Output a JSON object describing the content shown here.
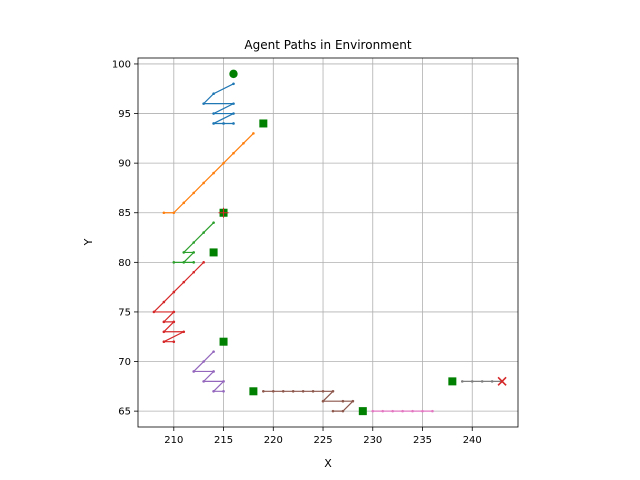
{
  "chart_data": {
    "type": "line",
    "title": "Agent Paths in Environment",
    "xlabel": "X",
    "ylabel": "Y",
    "xlim": [
      206.4,
      244.6
    ],
    "ylim": [
      63.4,
      100.6
    ],
    "xticks": [
      210,
      215,
      220,
      225,
      230,
      235,
      240
    ],
    "yticks": [
      65,
      70,
      75,
      80,
      85,
      90,
      95,
      100
    ],
    "grid": true,
    "series": [
      {
        "color": "#1f77b4",
        "points": [
          [
            216,
            98
          ],
          [
            214,
            97
          ],
          [
            213,
            96
          ],
          [
            216,
            96
          ],
          [
            214,
            95
          ],
          [
            216,
            95
          ],
          [
            214,
            94
          ],
          [
            216,
            94
          ],
          [
            215,
            94
          ]
        ],
        "start": [
          216,
          99
        ],
        "goal": [
          219,
          94
        ],
        "end_marker": "square"
      },
      {
        "color": "#ff7f0e",
        "points": [
          [
            218,
            93
          ],
          [
            217,
            92
          ],
          [
            216,
            91
          ],
          [
            215,
            90
          ],
          [
            214,
            89
          ],
          [
            213,
            88
          ],
          [
            212,
            87
          ],
          [
            211,
            86
          ],
          [
            210,
            85
          ],
          [
            209,
            85
          ]
        ],
        "start": [
          219,
          94
        ],
        "goal": [
          215,
          85
        ],
        "end_marker": "plus"
      },
      {
        "color": "#2ca02c",
        "points": [
          [
            214,
            84
          ],
          [
            213,
            83
          ],
          [
            212,
            82
          ],
          [
            211,
            81
          ],
          [
            212,
            81
          ],
          [
            211,
            80
          ],
          [
            210,
            80
          ],
          [
            212,
            80
          ]
        ],
        "start": [
          215,
          85
        ],
        "goal": [
          214,
          81
        ],
        "end_marker": "square"
      },
      {
        "color": "#d62728",
        "points": [
          [
            213,
            80
          ],
          [
            212,
            79
          ],
          [
            211,
            78
          ],
          [
            210,
            77
          ],
          [
            209,
            76
          ],
          [
            208,
            75
          ],
          [
            210,
            75
          ],
          [
            209,
            74
          ],
          [
            210,
            74
          ],
          [
            209,
            73
          ],
          [
            211,
            73
          ],
          [
            209,
            72
          ],
          [
            210,
            72
          ]
        ],
        "start": [
          214,
          81
        ],
        "goal": [
          215,
          72
        ],
        "end_marker": "square"
      },
      {
        "color": "#9467bd",
        "points": [
          [
            214,
            71
          ],
          [
            213,
            70
          ],
          [
            212,
            69
          ],
          [
            214,
            69
          ],
          [
            213,
            68
          ],
          [
            215,
            68
          ],
          [
            214,
            67
          ],
          [
            215,
            67
          ]
        ],
        "start": [
          215,
          72
        ],
        "goal": [
          218,
          67
        ],
        "end_marker": "square"
      },
      {
        "color": "#8c564b",
        "points": [
          [
            219,
            67
          ],
          [
            220,
            67
          ],
          [
            221,
            67
          ],
          [
            222,
            67
          ],
          [
            223,
            67
          ],
          [
            224,
            67
          ],
          [
            225,
            67
          ],
          [
            226,
            67
          ],
          [
            225,
            66
          ],
          [
            227,
            66
          ],
          [
            228,
            66
          ],
          [
            227,
            65
          ],
          [
            226,
            65
          ]
        ],
        "start": [
          218,
          67
        ],
        "goal": [
          229,
          65
        ],
        "end_marker": "square"
      },
      {
        "color": "#e377c2",
        "points": [
          [
            230,
            65
          ],
          [
            231,
            65
          ],
          [
            232,
            65
          ],
          [
            233,
            65
          ],
          [
            234,
            65
          ],
          [
            235,
            65
          ],
          [
            236,
            65
          ]
        ],
        "start": [
          229,
          65
        ],
        "goal": [
          238,
          68
        ],
        "end_marker": "square"
      },
      {
        "color": "#7f7f7f",
        "points": [
          [
            239,
            68
          ],
          [
            240,
            68
          ],
          [
            241,
            68
          ],
          [
            242,
            68
          ],
          [
            243,
            68
          ]
        ],
        "start": [
          238,
          68
        ],
        "goal": [
          243,
          68
        ],
        "end_marker": "x"
      }
    ],
    "markers": {
      "circles": [
        [
          216,
          99
        ]
      ],
      "squares": [
        [
          219,
          94
        ],
        [
          214,
          81
        ],
        [
          215,
          72
        ],
        [
          218,
          67
        ],
        [
          229,
          65
        ],
        [
          238,
          68
        ]
      ],
      "plus": [
        [
          215,
          85
        ]
      ],
      "x": [
        [
          243,
          68
        ]
      ]
    },
    "marker_colors": {
      "goal": "#008000",
      "end": "#d62728"
    }
  }
}
